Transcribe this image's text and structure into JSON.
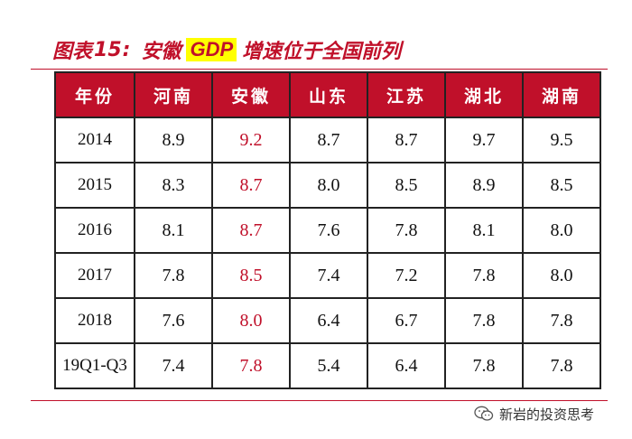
{
  "title": {
    "prefix": "图表",
    "number": "15",
    "colon": ":",
    "highlight": "GDP",
    "rest": "增速位于全国前列",
    "prefix_text": "安徽"
  },
  "table": {
    "headers": [
      "年份",
      "河南",
      "安徽",
      "山东",
      "江苏",
      "湖北",
      "湖南"
    ],
    "highlight_column": "安徽",
    "rows": [
      {
        "year": "2014",
        "values": [
          "8.9",
          "9.2",
          "8.7",
          "8.7",
          "9.7",
          "9.5"
        ]
      },
      {
        "year": "2015",
        "values": [
          "8.3",
          "8.7",
          "8.0",
          "8.5",
          "8.9",
          "8.5"
        ]
      },
      {
        "year": "2016",
        "values": [
          "8.1",
          "8.7",
          "7.6",
          "7.8",
          "8.1",
          "8.0"
        ]
      },
      {
        "year": "2017",
        "values": [
          "7.8",
          "8.5",
          "7.4",
          "7.2",
          "7.8",
          "8.0"
        ]
      },
      {
        "year": "2018",
        "values": [
          "7.6",
          "8.0",
          "6.4",
          "6.7",
          "7.8",
          "7.8"
        ]
      },
      {
        "year": "19Q1-Q3",
        "values": [
          "7.4",
          "7.8",
          "5.4",
          "6.4",
          "7.8",
          "7.8"
        ]
      }
    ]
  },
  "watermark": {
    "text": "新岩的投资思考",
    "icon": "wechat-icon"
  },
  "colors": {
    "accent": "#c0102a",
    "highlight_bg": "#ffff00"
  }
}
